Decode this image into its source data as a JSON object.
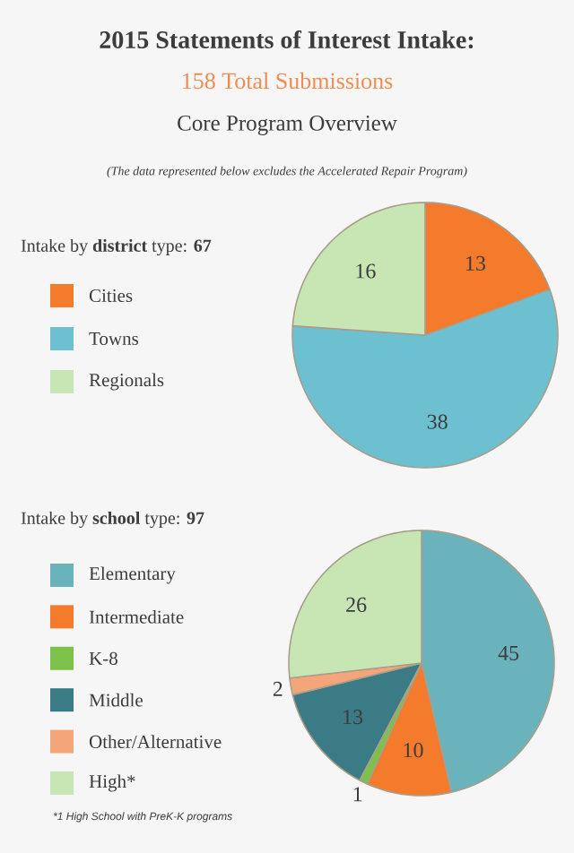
{
  "chart_data": [
    {
      "type": "pie",
      "title": "2015 Statements of Interest Intake:",
      "subtitle": "158 Total Submissions",
      "annotations": [
        "Core Program Overview",
        "(The data represented below excludes the Accelerated Repair Program)"
      ],
      "legend_title": "Intake by **district** type: **67**",
      "legend": "left",
      "data_labels": true,
      "categories": [
        "Cities",
        "Towns",
        "Regionals"
      ],
      "values": [
        13,
        38,
        16
      ],
      "colors": [
        "#f47a2c",
        "#6cc0d0",
        "#c8e6b4"
      ]
    },
    {
      "type": "pie",
      "legend_title": "Intake by **school** type: **97**",
      "legend": "left",
      "data_labels": true,
      "annotations": [
        "*1 High School with PreK-K programs"
      ],
      "categories": [
        "Elementary",
        "Intermediate",
        "K-8",
        "Middle",
        "Other/Alternative",
        "High*"
      ],
      "values": [
        45,
        10,
        1,
        13,
        2,
        26
      ],
      "colors": [
        "#6bb3bc",
        "#f47a2c",
        "#7cc24a",
        "#3a7b85",
        "#f4a57a",
        "#c8e6b4"
      ]
    }
  ]
}
